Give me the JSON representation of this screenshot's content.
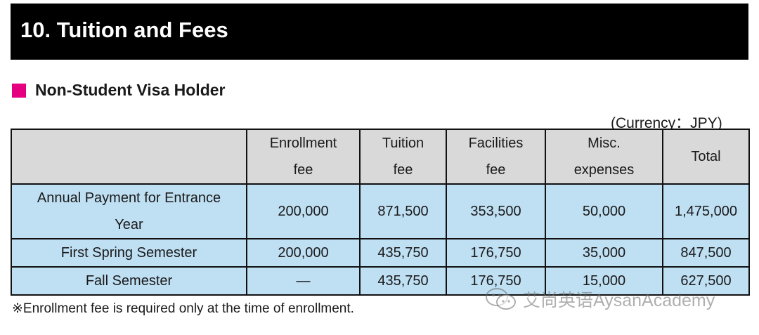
{
  "title": "10. Tuition and Fees",
  "section": {
    "heading": "Non-Student Visa Holder",
    "marker_color": "#e4007f"
  },
  "currency_note": "(Currency：JPY)",
  "table": {
    "headers": [
      {
        "line1": "",
        "line2": ""
      },
      {
        "line1": "Enrollment",
        "line2": "fee"
      },
      {
        "line1": "Tuition",
        "line2": "fee"
      },
      {
        "line1": "Facilities",
        "line2": "fee"
      },
      {
        "line1": "Misc.",
        "line2": "expenses"
      },
      {
        "line1": "Total",
        "line2": ""
      }
    ],
    "rows": [
      {
        "label_line1": "Annual Payment for Entrance",
        "label_line2": "Year",
        "enrollment": "200,000",
        "tuition": "871,500",
        "facilities": "353,500",
        "misc": "50,000",
        "total": "1,475,000"
      },
      {
        "label_line1": "First Spring Semester",
        "label_line2": "",
        "enrollment": "200,000",
        "tuition": "435,750",
        "facilities": "176,750",
        "misc": "35,000",
        "total": "847,500"
      },
      {
        "label_line1": "Fall Semester",
        "label_line2": "",
        "enrollment": "—",
        "tuition": "435,750",
        "facilities": "176,750",
        "misc": "15,000",
        "total": "627,500"
      }
    ],
    "header_color": "#d9d9d9",
    "row_color": "#bfdff3"
  },
  "footnote": "※Enrollment fee is required only at the time of enrollment.",
  "watermark": {
    "text": "艾尚英语AysanAcademy",
    "icon": "wechat-icon"
  }
}
